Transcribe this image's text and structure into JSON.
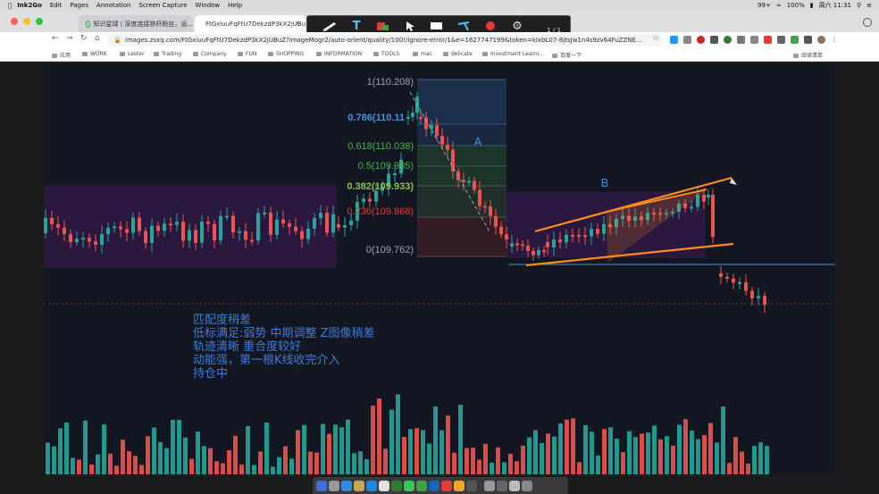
{
  "menubar": {
    "app_name": "Ink2Go",
    "items": [
      "Edit",
      "Pages",
      "Annotation",
      "Screen Capture",
      "Window",
      "Help"
    ],
    "battery": "100%",
    "clock": "周六 11:31",
    "badge": "99+"
  },
  "annotation_toolbar": {
    "page_indicator": "1 / 1",
    "tools": [
      "pen-tool",
      "text-tool",
      "color-tool",
      "pointer-tool",
      "shape-tool",
      "line-tool",
      "record-tool",
      "settings-tool"
    ]
  },
  "browser": {
    "tabs": [
      {
        "title": "知识星球 | 深度连接铁杆粉丝，运..."
      },
      {
        "title": "FtGxiuuFqFtU7DekzdP3kX2jUBuZ?imageMogr2..."
      }
    ],
    "url": "images.zsxq.com/FtGxiuuFqFtU7DekzdP3kX2jUBuZ?imageMogr2/auto-orient/quality/100!/ignore-error/1&e=1627747199&token=kIxbL07-8jtsJw1n4s9zv64FuZZNE...",
    "bookmarks": [
      "应用",
      "WORK",
      "Lester",
      "Trading",
      "Company",
      "FUN",
      "SHOPPING",
      "INFORMATION",
      "TOOLS",
      "mac",
      "delicate",
      "Investment Learni...",
      "百度一下"
    ],
    "reading_list": "阅读清单"
  },
  "chart": {
    "fib_levels": [
      {
        "label": "1(110.208)",
        "color": "#9aa3b5"
      },
      {
        "label": "0.786(110.11",
        "color": "#4a90d9"
      },
      {
        "label": "0.618(110.038)",
        "color": "#4caf50"
      },
      {
        "label": "0.5(109.985)",
        "color": "#4caf50"
      },
      {
        "label": "0.382(109.933)",
        "color": "#8bc34a"
      },
      {
        "label": "0.236(109.868)",
        "color": "#e53935"
      },
      {
        "label": "0(109.762)",
        "color": "#9aa3b5"
      }
    ],
    "label_a": "A",
    "label_b": "B",
    "notes": [
      "匹配度稍差",
      "低标满足:弱势  中期调整  Z图像稍差",
      "轨迹清晰 重合度较好",
      "动能强，第一根K线收完介入",
      "持仓中"
    ],
    "colors": {
      "up": "#26a69a",
      "down": "#ef5350",
      "annotation": "#ff8c1a",
      "zone": "#7b1fa2",
      "note_text": "#3d7ddb"
    }
  }
}
